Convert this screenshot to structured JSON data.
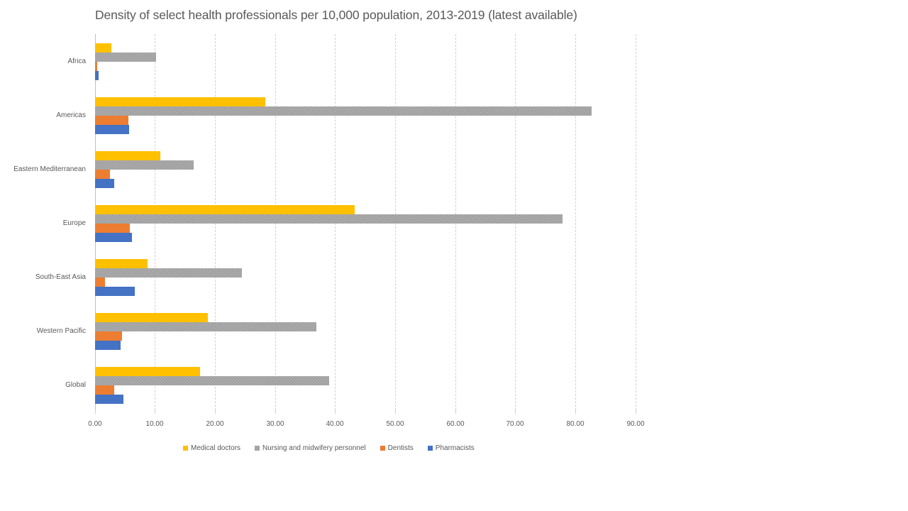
{
  "chart_data": {
    "type": "bar",
    "orientation": "horizontal",
    "title": "Density of select health professionals per 10,000 population, 2013-2019 (latest available)",
    "xlabel": "",
    "ylabel": "",
    "xlim": [
      0,
      90
    ],
    "x_ticks": [
      "0.00",
      "10.00",
      "20.00",
      "30.00",
      "40.00",
      "50.00",
      "60.00",
      "70.00",
      "80.00",
      "90.00"
    ],
    "grid": true,
    "legend_position": "bottom",
    "categories": [
      "Africa",
      "Americas",
      "Eastern Mediterranean",
      "Europe",
      "South-East Asia",
      "Western Pacific",
      "Global"
    ],
    "series": [
      {
        "name": "Medical doctors",
        "color": "#FFC000",
        "values": [
          2.7,
          28.3,
          10.9,
          43.2,
          8.7,
          18.8,
          17.5
        ]
      },
      {
        "name": "Nursing and midwifery personnel",
        "color": "#A5A5A5",
        "values": [
          10.2,
          82.7,
          16.4,
          77.8,
          24.4,
          36.8,
          39.0
        ]
      },
      {
        "name": "Dentists",
        "color": "#ED7D31",
        "values": [
          0.3,
          5.6,
          2.5,
          5.8,
          1.6,
          4.5,
          3.2
        ]
      },
      {
        "name": "Pharmacists",
        "color": "#4472C4",
        "values": [
          0.6,
          5.7,
          3.2,
          6.2,
          6.6,
          4.3,
          4.7
        ]
      }
    ]
  }
}
